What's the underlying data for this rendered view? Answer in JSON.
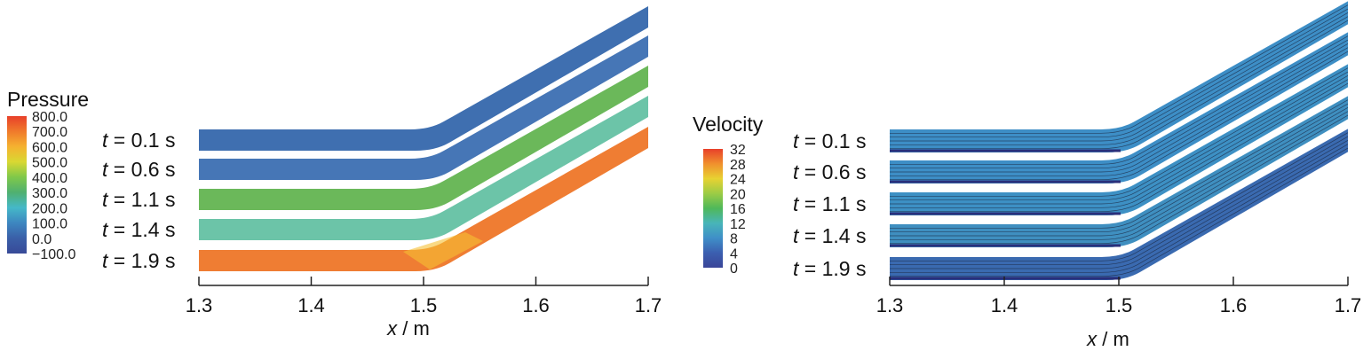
{
  "panels": [
    {
      "colorbar_title": "Pressure",
      "colorbar_ticks": [
        "800.0",
        "700.0",
        "600.0",
        "500.0",
        "400.0",
        "300.0",
        "200.0",
        "100.0",
        "0.0",
        "−100.0"
      ],
      "colorbar_colors": [
        "#e8402a",
        "#f07a2b",
        "#f5b230",
        "#d9d832",
        "#7fc84a",
        "#4fb070",
        "#45b8c8",
        "#3d86c0",
        "#3a5fa8",
        "#384a98"
      ],
      "times": [
        "t = 0.1 s",
        "t = 0.6 s",
        "t = 1.1 s",
        "t = 1.4 s",
        "t = 1.9 s"
      ],
      "strip_colors": [
        "#3f6fb0",
        "#4676b6",
        "#6bb85a",
        "#6cc4a8",
        "#ef7d33"
      ],
      "x_ticks": [
        "1.3",
        "1.4",
        "1.5",
        "1.6",
        "1.7"
      ],
      "x_axis_label_var": "x",
      "x_axis_label_unit": " / m"
    },
    {
      "colorbar_title": "Velocity",
      "colorbar_ticks": [
        "32",
        "28",
        "24",
        "20",
        "16",
        "12",
        "8",
        "4",
        "0"
      ],
      "colorbar_colors": [
        "#e8402a",
        "#f0902d",
        "#e8d232",
        "#9ccc45",
        "#4fb85a",
        "#48b5b8",
        "#3f8fc8",
        "#3b5fb0",
        "#3a4598"
      ],
      "times": [
        "t = 0.1 s",
        "t = 0.6 s",
        "t = 1.1 s",
        "t = 1.4 s",
        "t = 1.9 s"
      ],
      "strip_colors": [
        "#3d8ec6",
        "#3d8ec6",
        "#3d90c4",
        "#3f8fc0",
        "#3a6ab0"
      ],
      "x_ticks": [
        "1.3",
        "1.4",
        "1.5",
        "1.6",
        "1.7"
      ],
      "x_axis_label_var": "x",
      "x_axis_label_unit": " / m"
    }
  ]
}
